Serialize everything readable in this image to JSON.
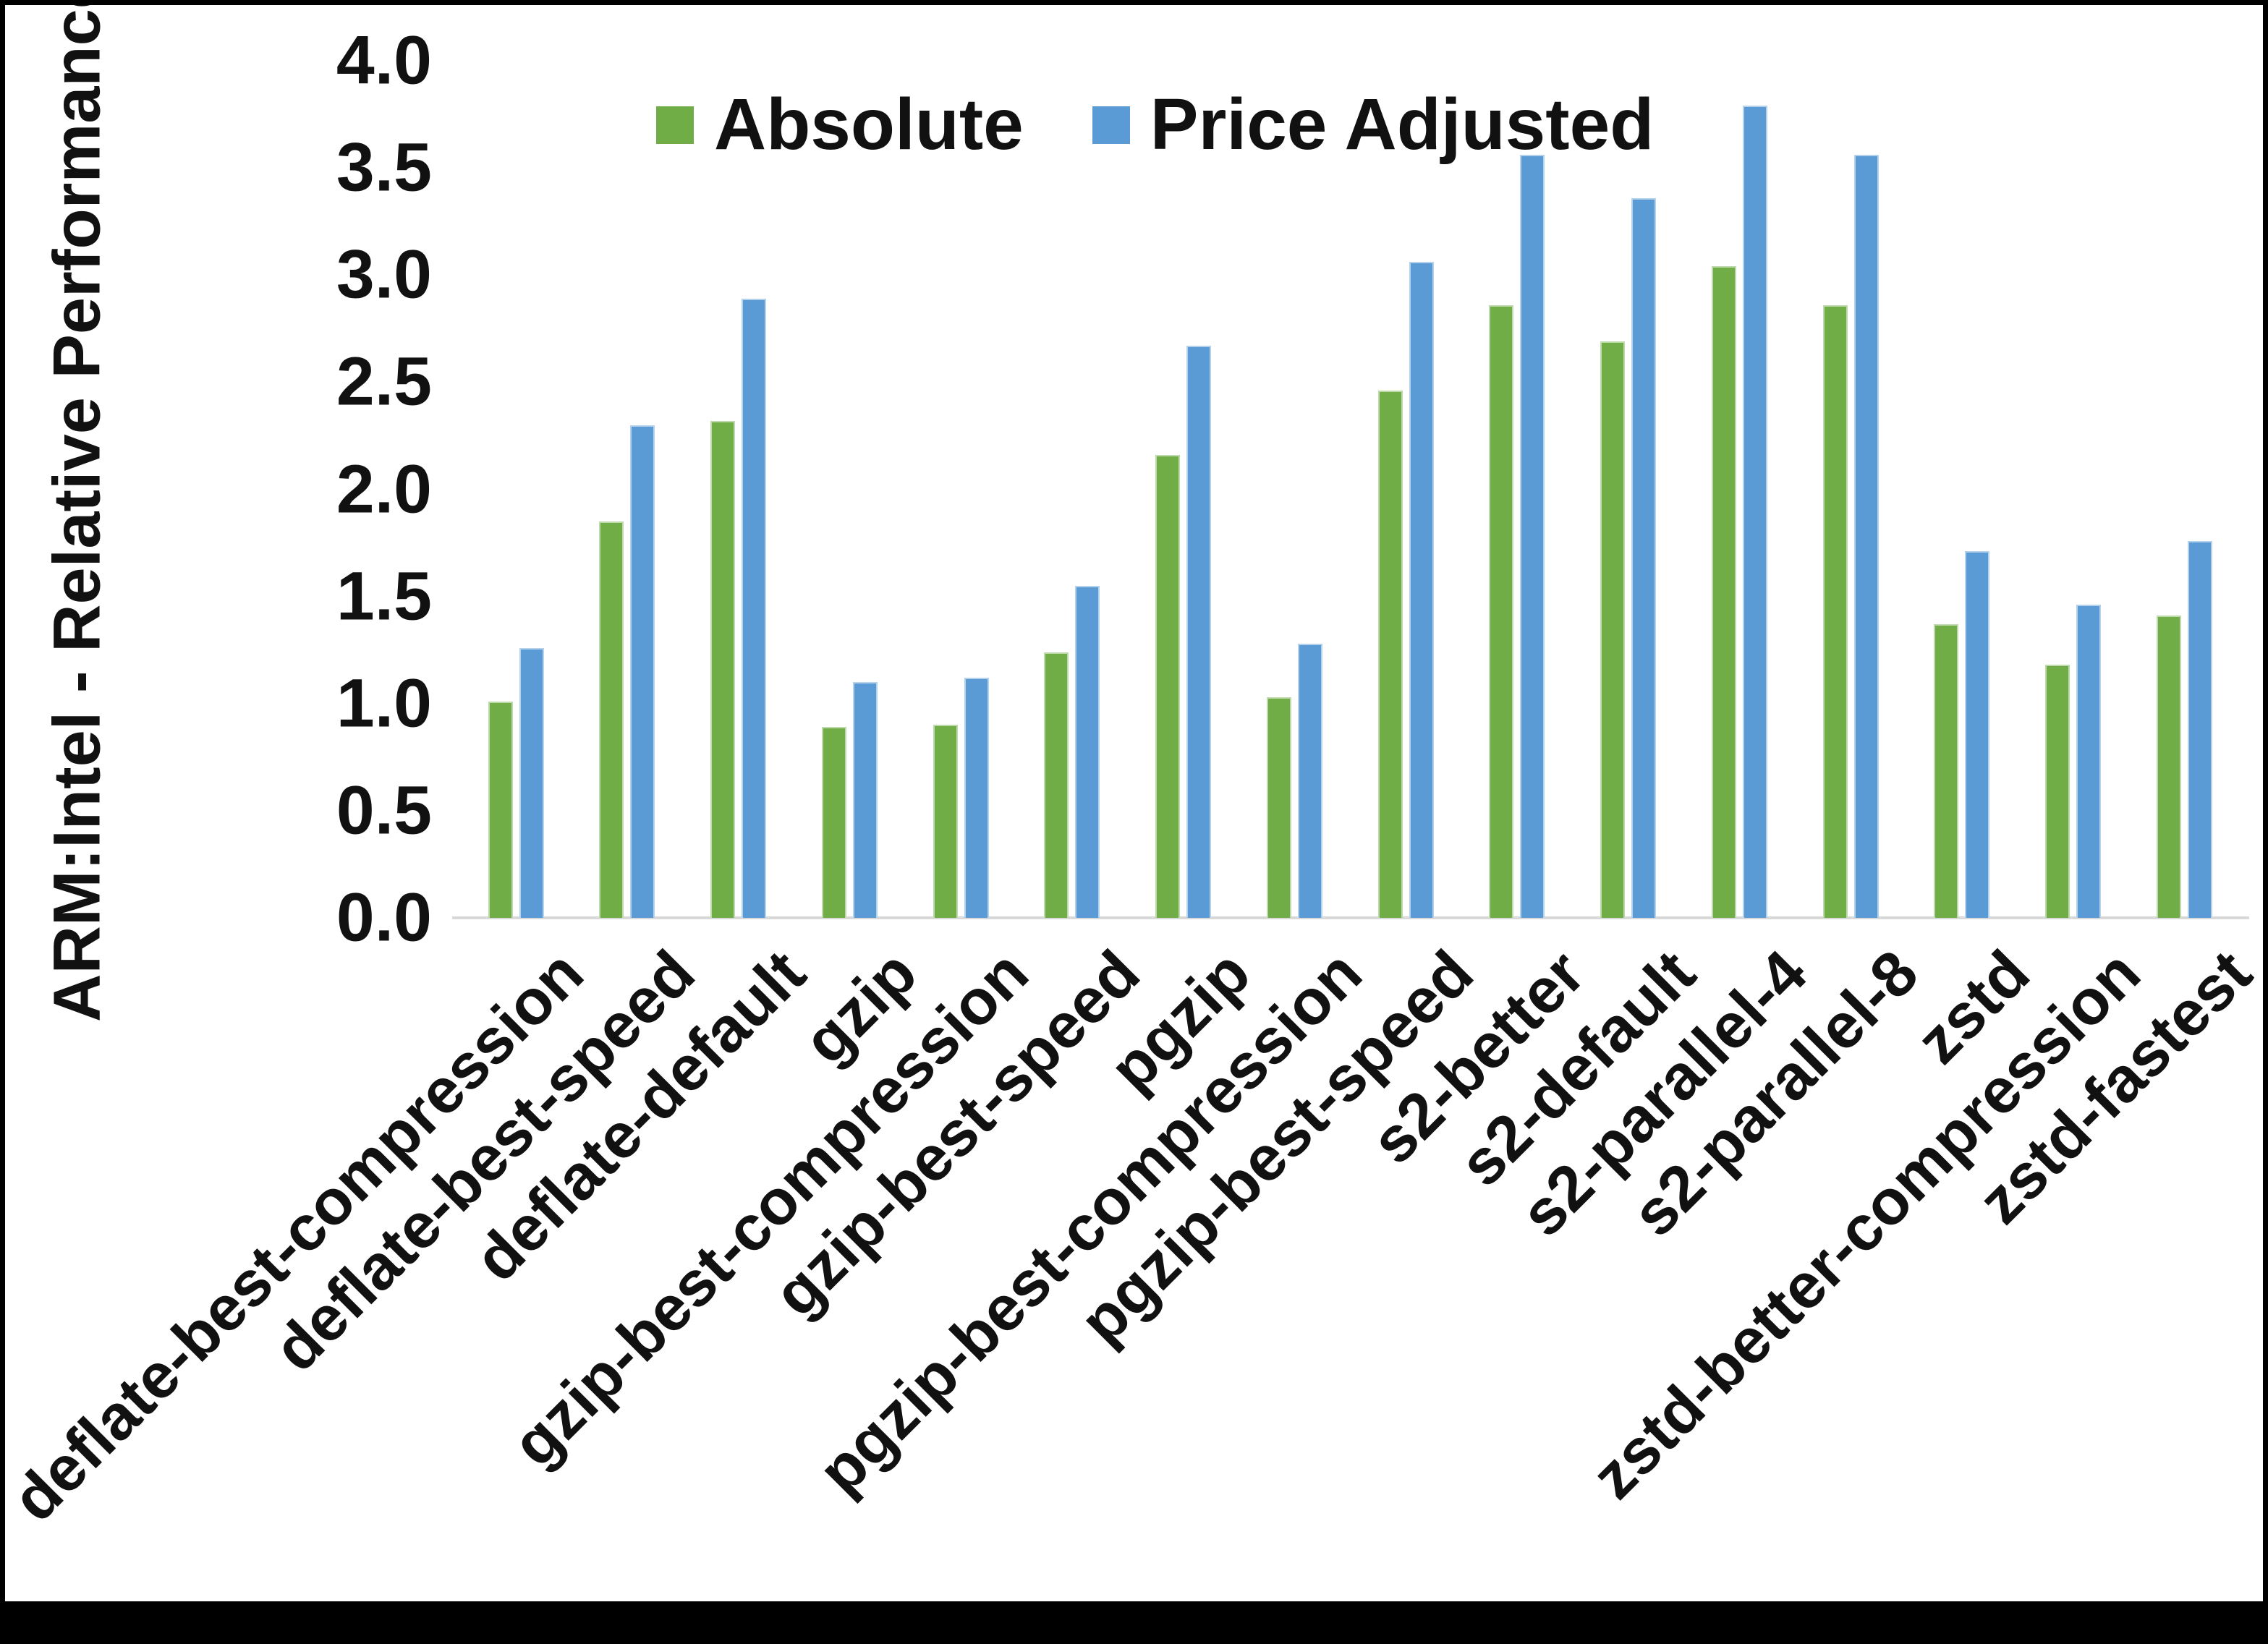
{
  "y_axis_title": "ARM:Intel - Relative Performance",
  "chart_data": {
    "type": "bar",
    "title": "",
    "xlabel": "",
    "ylabel": "ARM:Intel - Relative Performance",
    "ylim": [
      0.0,
      4.0
    ],
    "ytick_step": 0.5,
    "ytick_labels": [
      "4.0",
      "3.5",
      "3.0",
      "2.5",
      "2.0",
      "1.5",
      "1.0",
      "0.5",
      "0.0"
    ],
    "grid": false,
    "legend_position": "top-center",
    "axis_line_color": "#d9d9d9",
    "background_color": "#ffffff",
    "categories": [
      "deflate-best-compression",
      "deflate-best-speed",
      "deflate-default",
      "gzip",
      "gzip-best-compression",
      "gzip-best-speed",
      "pgzip",
      "pgzip-best-compression",
      "pgzip-best-speed",
      "s2-better",
      "s2-default",
      "s2-parallel-4",
      "s2-parallel-8",
      "zstd",
      "zstd-better-compression",
      "zstd-fastest"
    ],
    "series": [
      {
        "name": "Absolute",
        "color": "#70AD47",
        "values": [
          1.01,
          1.85,
          2.32,
          0.89,
          0.9,
          1.24,
          2.16,
          1.03,
          2.46,
          2.86,
          2.69,
          3.04,
          2.86,
          1.37,
          1.18,
          1.41
        ]
      },
      {
        "name": "Price Adjusted",
        "color": "#5B9BD5",
        "values": [
          1.26,
          2.3,
          2.89,
          1.1,
          1.12,
          1.55,
          2.67,
          1.28,
          3.06,
          3.56,
          3.36,
          3.79,
          3.56,
          1.71,
          1.46,
          1.76
        ]
      }
    ]
  }
}
